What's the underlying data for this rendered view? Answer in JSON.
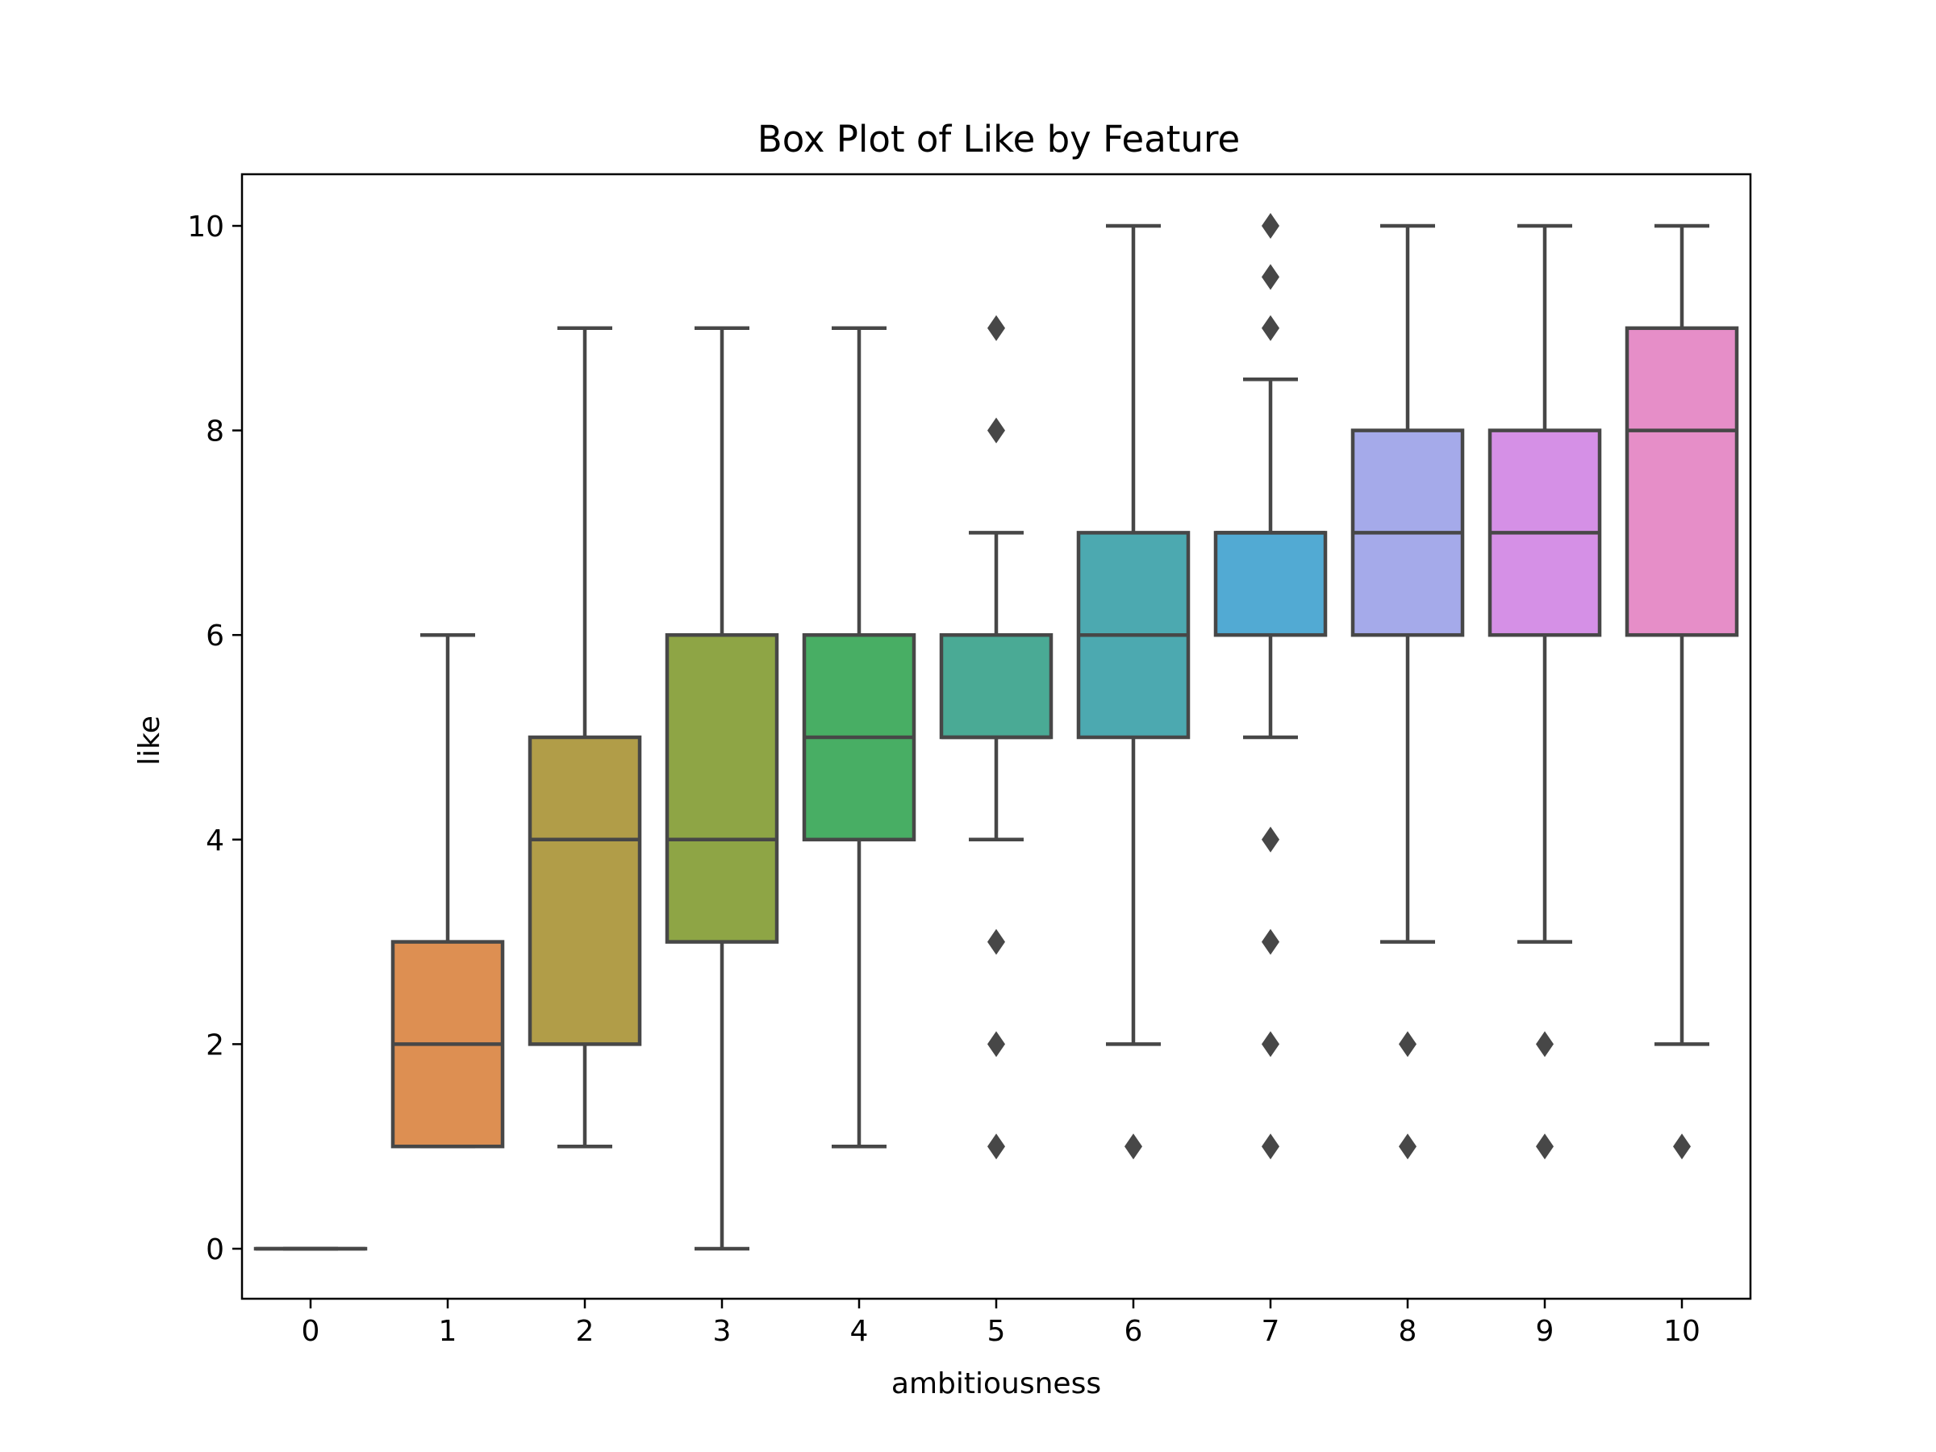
{
  "chart_data": {
    "type": "box",
    "title": "Box Plot of Like by Feature",
    "xlabel": "ambitiousness",
    "ylabel": "like",
    "ylim": [
      -0.5,
      10.5
    ],
    "yticks": [
      0,
      2,
      4,
      6,
      8,
      10
    ],
    "grid": false,
    "legend": "none",
    "categories": [
      "0",
      "1",
      "2",
      "3",
      "4",
      "5",
      "6",
      "7",
      "8",
      "9",
      "10"
    ],
    "boxes": [
      {
        "category": "0",
        "whisker_low": 0,
        "q1": 0,
        "median": 0,
        "q3": 0,
        "whisker_high": 0,
        "outliers": [],
        "color": "#4c72b0"
      },
      {
        "category": "1",
        "whisker_low": 1,
        "q1": 1,
        "median": 2,
        "q3": 3,
        "whisker_high": 6,
        "outliers": [],
        "color": "#dd8f52"
      },
      {
        "category": "2",
        "whisker_low": 1,
        "q1": 2,
        "median": 4,
        "q3": 5,
        "whisker_high": 9,
        "outliers": [],
        "color": "#b19d48"
      },
      {
        "category": "3",
        "whisker_low": 0,
        "q1": 3,
        "median": 4,
        "q3": 6,
        "whisker_high": 9,
        "outliers": [],
        "color": "#8ea545"
      },
      {
        "category": "4",
        "whisker_low": 1,
        "q1": 4,
        "median": 5,
        "q3": 6,
        "whisker_high": 9,
        "outliers": [],
        "color": "#48ae64"
      },
      {
        "category": "5",
        "whisker_low": 4,
        "q1": 5,
        "median": 5,
        "q3": 6,
        "whisker_high": 7,
        "outliers": [
          9,
          8,
          3,
          2,
          1
        ],
        "color": "#4aaa95"
      },
      {
        "category": "6",
        "whisker_low": 2,
        "q1": 5,
        "median": 6,
        "q3": 7,
        "whisker_high": 10,
        "outliers": [
          1
        ],
        "color": "#4ca9b0"
      },
      {
        "category": "7",
        "whisker_low": 5,
        "q1": 6,
        "median": 7,
        "q3": 7,
        "whisker_high": 8.5,
        "outliers": [
          10,
          9.5,
          9,
          4,
          3,
          2,
          1
        ],
        "color": "#52aad3"
      },
      {
        "category": "8",
        "whisker_low": 3,
        "q1": 6,
        "median": 7,
        "q3": 8,
        "whisker_high": 10,
        "outliers": [
          2,
          1
        ],
        "color": "#a5aaea"
      },
      {
        "category": "9",
        "whisker_low": 3,
        "q1": 6,
        "median": 7,
        "q3": 8,
        "whisker_high": 10,
        "outliers": [
          2,
          1
        ],
        "color": "#d590e6"
      },
      {
        "category": "10",
        "whisker_low": 2,
        "q1": 6,
        "median": 8,
        "q3": 9,
        "whisker_high": 10,
        "outliers": [
          1
        ],
        "color": "#e68ec8"
      }
    ],
    "line_color": "#474747"
  }
}
